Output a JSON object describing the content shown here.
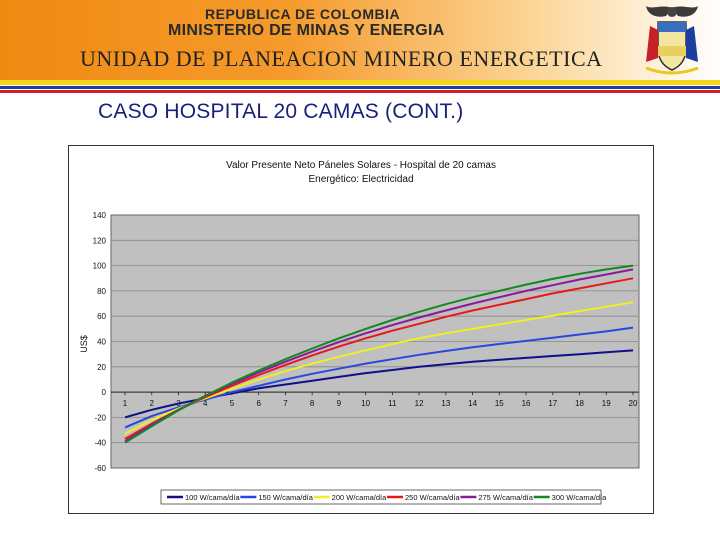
{
  "header": {
    "line1": "REPUBLICA DE COLOMBIA",
    "line2": "MINISTERIO DE MINAS Y ENERGIA",
    "line3": "UNIDAD DE PLANEACION MINERO ENERGETICA",
    "flag_colors": [
      "#f7d417",
      "#1a3fa0",
      "#d42020"
    ],
    "crest_icon": "coat-of-arms-icon"
  },
  "slide": {
    "title": "CASO HOSPITAL 20 CAMAS (CONT.)"
  },
  "chart_data": {
    "type": "line",
    "title": "Valor Presente Neto Páneles Solares - Hospital de 20 camas",
    "subtitle": "Energético: Electricidad",
    "ylabel": "US$",
    "xlabel": "",
    "ylim": [
      -60,
      140
    ],
    "yticks": [
      -60,
      -40,
      -20,
      0,
      20,
      40,
      60,
      80,
      100,
      120,
      140
    ],
    "ytick_labels": [
      "-60",
      "-40",
      "-20",
      "0",
      "20",
      "40",
      "60",
      "80",
      "100",
      "120",
      "140"
    ],
    "x": [
      1,
      2,
      3,
      4,
      5,
      6,
      7,
      8,
      9,
      10,
      11,
      12,
      13,
      14,
      15,
      16,
      17,
      18,
      19,
      20
    ],
    "xtick_labels": [
      "1",
      "2",
      "3",
      "4",
      "5",
      "6",
      "7",
      "8",
      "9",
      "10",
      "11",
      "12",
      "13",
      "14",
      "15",
      "16",
      "17",
      "18",
      "19",
      "20"
    ],
    "grid": true,
    "plot_background": "#c0c0c0",
    "legend_position": "bottom",
    "series": [
      {
        "name": "100 W/cama/día",
        "color": "#10108a",
        "values": [
          -20,
          -14,
          -9,
          -5,
          -1,
          3,
          6,
          9,
          12,
          15,
          17.5,
          20,
          22,
          24,
          25.5,
          27,
          28.5,
          30,
          31.5,
          33
        ]
      },
      {
        "name": "150 W/cama/día",
        "color": "#2848e0",
        "values": [
          -28,
          -19,
          -12,
          -6,
          0,
          5,
          10,
          14.5,
          18.5,
          22.5,
          26,
          29.5,
          32.5,
          35.5,
          38,
          40.5,
          43,
          45.5,
          48,
          51
        ]
      },
      {
        "name": "200 W/cama/día",
        "color": "#f0f020",
        "values": [
          -33,
          -22,
          -13,
          -5,
          2.5,
          10,
          16.5,
          22.5,
          28,
          33,
          38,
          42.5,
          46.5,
          50,
          53.5,
          57,
          60.5,
          64,
          67.5,
          71
        ]
      },
      {
        "name": "250 W/cama/día",
        "color": "#e81818",
        "values": [
          -37,
          -25,
          -14,
          -4,
          5,
          13.5,
          21.5,
          29,
          36,
          42.5,
          48.5,
          54,
          59.5,
          64.5,
          69,
          73.5,
          78,
          82,
          86,
          90
        ]
      },
      {
        "name": "275 W/cama/día",
        "color": "#8a1a9a",
        "values": [
          -39,
          -26,
          -14,
          -3,
          6.5,
          15.5,
          24,
          32,
          39.5,
          46.5,
          53,
          59,
          64.5,
          70,
          75,
          80,
          84.5,
          89,
          93,
          97
        ]
      },
      {
        "name": "300 W/cama/día",
        "color": "#108a20",
        "values": [
          -40,
          -27,
          -14.5,
          -3,
          7.5,
          17,
          26,
          34.5,
          42.5,
          50,
          57,
          63.5,
          69.5,
          75,
          80,
          85,
          89.5,
          93.5,
          97,
          100
        ]
      }
    ]
  }
}
